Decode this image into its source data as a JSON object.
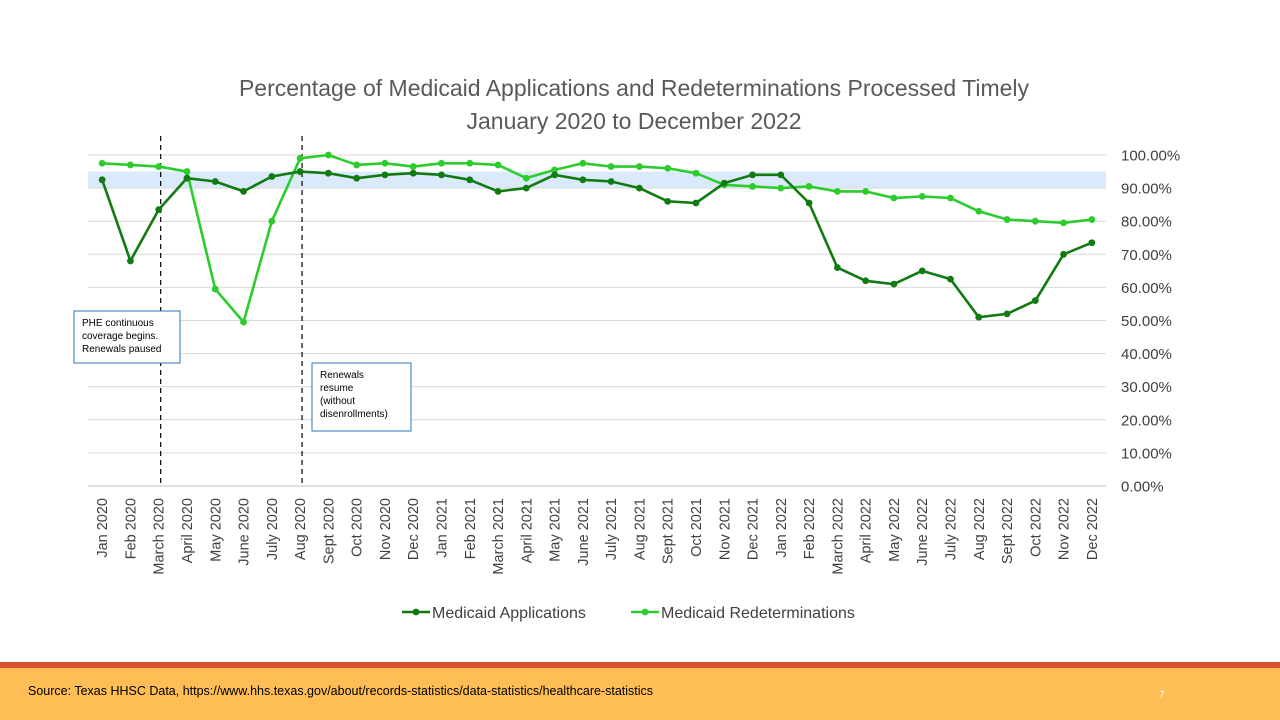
{
  "chart_data": {
    "type": "line",
    "title": [
      "Percentage of Medicaid Applications and Redeterminations Processed Timely",
      "January 2020 to December 2022"
    ],
    "categories": [
      "Jan 2020",
      "Feb 2020",
      "March 2020",
      "April 2020",
      "May 2020",
      "June 2020",
      "July 2020",
      "Aug 2020",
      "Sept 2020",
      "Oct 2020",
      "Nov 2020",
      "Dec 2020",
      "Jan 2021",
      "Feb 2021",
      "March 2021",
      "April 2021",
      "May 2021",
      "June 2021",
      "July 2021",
      "Aug 2021",
      "Sept 2021",
      "Oct 2021",
      "Nov 2021",
      "Dec 2021",
      "Jan 2022",
      "Feb 2022",
      "March 2022",
      "April 2022",
      "May 2022",
      "June 2022",
      "July 2022",
      "Aug 2022",
      "Sept 2022",
      "Oct 2022",
      "Nov 2022",
      "Dec 2022"
    ],
    "series": [
      {
        "name": "Medicaid Applications",
        "color": "#127a12",
        "values": [
          92.5,
          68,
          83.5,
          93,
          92,
          89,
          93.5,
          95,
          94.5,
          93,
          94,
          94.5,
          94,
          92.5,
          89,
          90,
          94,
          92.5,
          92,
          90,
          86,
          85.5,
          91.5,
          94,
          94,
          85.5,
          66,
          62,
          61,
          65,
          62.5,
          51,
          52,
          56,
          70,
          73.5
        ]
      },
      {
        "name": "Medicaid Redeterminations",
        "color": "#2ccc2c",
        "values": [
          97.5,
          97,
          96.5,
          95,
          59.5,
          49.5,
          80,
          99,
          100,
          97,
          97.5,
          96.5,
          97.5,
          97.5,
          97,
          93,
          95.5,
          97.5,
          96.5,
          96.5,
          96,
          94.5,
          91,
          90.5,
          90,
          90.5,
          89,
          89,
          87,
          87.5,
          87,
          83,
          80.5,
          80,
          79.5,
          80.5
        ]
      }
    ],
    "ylim": [
      0,
      100
    ],
    "yticks": [
      "0.00%",
      "10.00%",
      "20.00%",
      "30.00%",
      "40.00%",
      "50.00%",
      "60.00%",
      "70.00%",
      "80.00%",
      "90.00%",
      "100.00%"
    ],
    "y_axis_side": "right",
    "grid": true,
    "target_band": [
      90,
      95
    ],
    "target_band_color": "#dbeafb",
    "legend": {
      "position": "bottom"
    },
    "annotations": [
      {
        "after_category": "March 2020",
        "lines": [
          "PHE continuous",
          "coverage begins.",
          "Renewals paused"
        ]
      },
      {
        "after_category": "Aug 2020",
        "lines": [
          "Renewals",
          "resume",
          "(without",
          "disenrollments)"
        ]
      }
    ]
  },
  "footer": {
    "source": "Source: Texas HHSC Data,  https://www.hhs.texas.gov/about/records-statistics/data-statistics/healthcare-statistics",
    "page_number": "7",
    "colors": {
      "bar": "#ffbe55",
      "band": "#d9512c"
    }
  }
}
